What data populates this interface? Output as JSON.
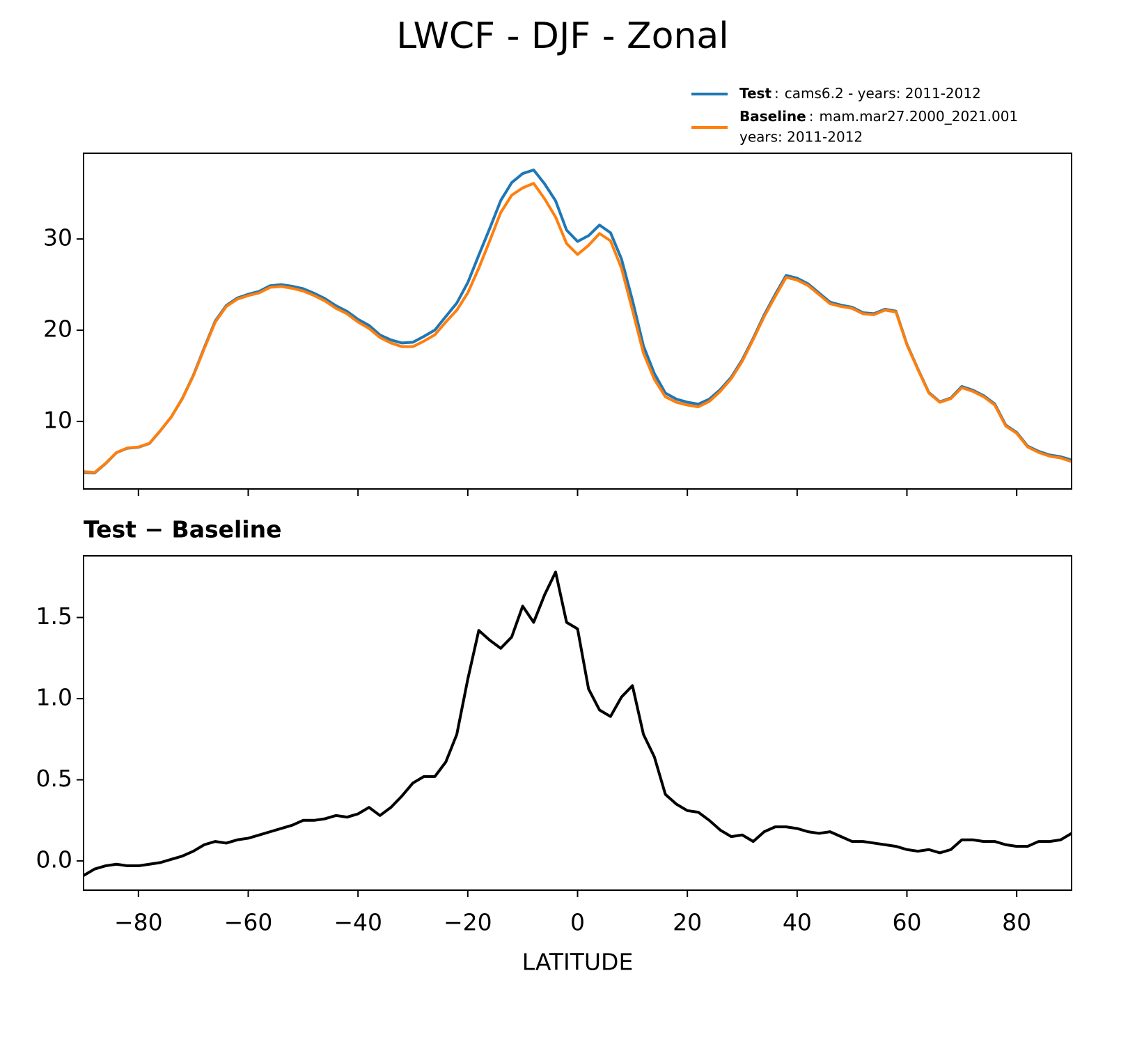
{
  "title": "LWCF - DJF - Zonal",
  "chart_data": [
    {
      "type": "line",
      "x": [
        -90,
        -88,
        -86,
        -84,
        -82,
        -80,
        -78,
        -76,
        -74,
        -72,
        -70,
        -68,
        -66,
        -64,
        -62,
        -60,
        -58,
        -56,
        -54,
        -52,
        -50,
        -48,
        -46,
        -44,
        -42,
        -40,
        -38,
        -36,
        -34,
        -32,
        -30,
        -28,
        -26,
        -24,
        -22,
        -20,
        -18,
        -16,
        -14,
        -12,
        -10,
        -8,
        -6,
        -4,
        -2,
        0,
        2,
        4,
        6,
        8,
        10,
        12,
        14,
        16,
        18,
        20,
        22,
        24,
        26,
        28,
        30,
        32,
        34,
        36,
        38,
        40,
        42,
        44,
        46,
        48,
        50,
        52,
        54,
        56,
        58,
        60,
        62,
        64,
        66,
        68,
        70,
        72,
        74,
        76,
        78,
        80,
        82,
        84,
        86,
        88,
        90
      ],
      "series": [
        {
          "name": "Test",
          "description": [
            "cams6.2 - years: 2011-2012"
          ],
          "color": "#1f77b4",
          "values": [
            4.41,
            4.35,
            5.37,
            6.58,
            7.07,
            7.17,
            7.58,
            8.99,
            10.51,
            12.53,
            15.06,
            18.1,
            21.02,
            22.71,
            23.53,
            23.94,
            24.26,
            24.88,
            25.0,
            24.82,
            24.55,
            24.05,
            23.46,
            22.68,
            22.07,
            21.19,
            20.53,
            19.48,
            18.93,
            18.6,
            18.68,
            19.32,
            20.02,
            21.51,
            22.98,
            25.22,
            28.22,
            31.16,
            34.21,
            36.18,
            37.17,
            37.57,
            36.04,
            34.18,
            30.97,
            29.73,
            30.36,
            31.53,
            30.69,
            27.81,
            23.28,
            18.28,
            15.24,
            13.11,
            12.45,
            12.11,
            11.9,
            12.45,
            13.49,
            14.85,
            16.76,
            19.12,
            21.68,
            23.91,
            26.01,
            25.7,
            25.08,
            24.07,
            23.08,
            22.75,
            22.52,
            21.92,
            21.81,
            22.3,
            22.09,
            18.47,
            15.76,
            13.17,
            12.15,
            12.57,
            13.83,
            13.43,
            12.82,
            11.92,
            9.6,
            8.79,
            7.29,
            6.72,
            6.32,
            6.13,
            5.77
          ]
        },
        {
          "name": "Baseline",
          "description": [
            "mam.mar27.2000_2021.001",
            "years: 2011-2012"
          ],
          "color": "#ff7f0e",
          "values": [
            4.5,
            4.4,
            5.4,
            6.6,
            7.1,
            7.2,
            7.6,
            9.0,
            10.5,
            12.5,
            15.0,
            18.0,
            20.9,
            22.6,
            23.4,
            23.8,
            24.1,
            24.7,
            24.8,
            24.6,
            24.3,
            23.8,
            23.2,
            22.4,
            21.8,
            20.9,
            20.2,
            19.2,
            18.6,
            18.2,
            18.2,
            18.8,
            19.5,
            20.9,
            22.2,
            24.1,
            26.8,
            29.8,
            32.9,
            34.8,
            35.6,
            36.1,
            34.4,
            32.4,
            29.5,
            28.3,
            29.3,
            30.6,
            29.8,
            26.8,
            22.2,
            17.5,
            14.6,
            12.7,
            12.1,
            11.8,
            11.6,
            12.2,
            13.3,
            14.7,
            16.6,
            19.0,
            21.5,
            23.7,
            25.8,
            25.5,
            24.9,
            23.9,
            22.9,
            22.6,
            22.4,
            21.8,
            21.7,
            22.2,
            22.0,
            18.4,
            15.7,
            13.1,
            12.1,
            12.5,
            13.7,
            13.3,
            12.7,
            11.8,
            9.5,
            8.7,
            7.2,
            6.6,
            6.2,
            6.0,
            5.6
          ]
        }
      ],
      "xlim": [
        -90,
        90
      ],
      "xticks": [
        -80,
        -60,
        -40,
        -20,
        0,
        20,
        40,
        60,
        80
      ],
      "ylim": [
        2.6,
        39.4
      ],
      "yticks": [
        10,
        20,
        30
      ]
    },
    {
      "type": "line",
      "title": "Test − Baseline",
      "xlabel": "LATITUDE",
      "color": "#000000",
      "x": [
        -90,
        -88,
        -86,
        -84,
        -82,
        -80,
        -78,
        -76,
        -74,
        -72,
        -70,
        -68,
        -66,
        -64,
        -62,
        -60,
        -58,
        -56,
        -54,
        -52,
        -50,
        -48,
        -46,
        -44,
        -42,
        -40,
        -38,
        -36,
        -34,
        -32,
        -30,
        -28,
        -26,
        -24,
        -22,
        -20,
        -18,
        -16,
        -14,
        -12,
        -10,
        -8,
        -6,
        -4,
        -2,
        0,
        2,
        4,
        6,
        8,
        10,
        12,
        14,
        16,
        18,
        20,
        22,
        24,
        26,
        28,
        30,
        32,
        34,
        36,
        38,
        40,
        42,
        44,
        46,
        48,
        50,
        52,
        54,
        56,
        58,
        60,
        62,
        64,
        66,
        68,
        70,
        72,
        74,
        76,
        78,
        80,
        82,
        84,
        86,
        88,
        90
      ],
      "values": [
        -0.09,
        -0.05,
        -0.03,
        -0.02,
        -0.03,
        -0.03,
        -0.02,
        -0.01,
        0.01,
        0.03,
        0.06,
        0.1,
        0.12,
        0.11,
        0.13,
        0.14,
        0.16,
        0.18,
        0.2,
        0.22,
        0.25,
        0.25,
        0.26,
        0.28,
        0.27,
        0.29,
        0.33,
        0.28,
        0.33,
        0.4,
        0.48,
        0.52,
        0.52,
        0.61,
        0.78,
        1.12,
        1.42,
        1.36,
        1.31,
        1.38,
        1.57,
        1.47,
        1.64,
        1.78,
        1.47,
        1.43,
        1.06,
        0.93,
        0.89,
        1.01,
        1.08,
        0.78,
        0.64,
        0.41,
        0.35,
        0.31,
        0.3,
        0.25,
        0.19,
        0.15,
        0.16,
        0.12,
        0.18,
        0.21,
        0.21,
        0.2,
        0.18,
        0.17,
        0.18,
        0.15,
        0.12,
        0.12,
        0.11,
        0.1,
        0.09,
        0.07,
        0.06,
        0.07,
        0.05,
        0.07,
        0.13,
        0.13,
        0.12,
        0.12,
        0.1,
        0.09,
        0.09,
        0.12,
        0.12,
        0.13,
        0.17
      ],
      "xlim": [
        -90,
        90
      ],
      "xticks": [
        {
          "value": -80,
          "label": "−80"
        },
        {
          "value": -60,
          "label": "−60"
        },
        {
          "value": -40,
          "label": "−40"
        },
        {
          "value": -20,
          "label": "−20"
        },
        0,
        20,
        40,
        60,
        80
      ],
      "ylim": [
        -0.18,
        1.88
      ],
      "yticks": [
        {
          "value": 0,
          "label": "0.0"
        },
        0.5,
        {
          "value": 1,
          "label": "1.0"
        },
        1.5
      ]
    }
  ]
}
